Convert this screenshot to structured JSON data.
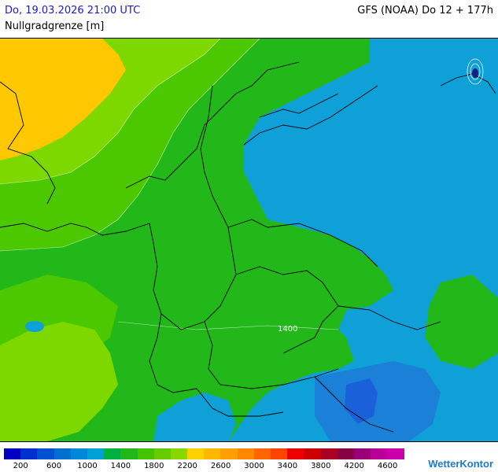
{
  "header": {
    "datetime": "Do, 19.03.2026 21:00 UTC",
    "parameter": "Nullgradgrenze [m]",
    "model": "GFS (NOAA) Do 12 + 177h"
  },
  "map": {
    "contour_label": "1400",
    "colors": {
      "orange": "#ffc800",
      "yellowgreen": "#7dd800",
      "lightgreen": "#4cc800",
      "green": "#22b81a",
      "blue": "#10a0d8",
      "darkblue": "#1a60d8",
      "midblue": "#1a80d8"
    }
  },
  "legend": {
    "colors": [
      "#0000c0",
      "#0030d0",
      "#0050d0",
      "#0070d0",
      "#0088d8",
      "#00a0d8",
      "#00b040",
      "#22b81a",
      "#44c400",
      "#66cc00",
      "#88d800",
      "#ffd000",
      "#ffb800",
      "#ffa000",
      "#ff8800",
      "#ff6600",
      "#ff4400",
      "#ee0000",
      "#cc0000",
      "#aa0022",
      "#880044",
      "#990077",
      "#bb0099",
      "#cc00aa"
    ],
    "ticks": [
      "200",
      "600",
      "1000",
      "1400",
      "1800",
      "2200",
      "2600",
      "3000",
      "3400",
      "3800",
      "4200",
      "4600"
    ]
  },
  "brand": "WetterKontor"
}
